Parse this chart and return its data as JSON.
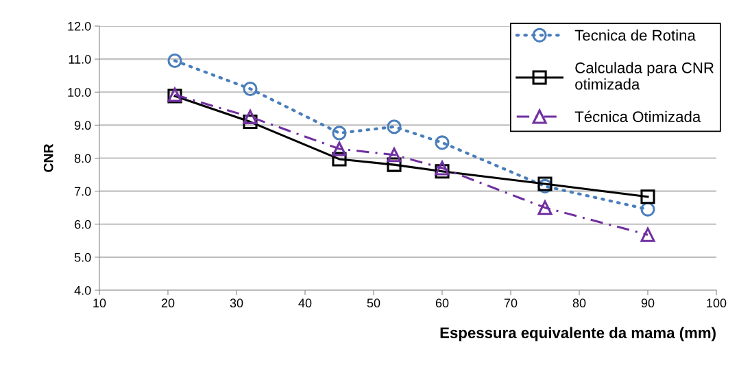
{
  "chart_data": {
    "type": "line",
    "xlabel": "Espessura equivalente da mama (mm)",
    "ylabel": "CNR",
    "x": [
      21,
      32,
      45,
      53,
      60,
      75,
      90
    ],
    "series": [
      {
        "name": "Tecnica de Rotina",
        "color": "#4a7ebb",
        "line_style": "dotted",
        "marker": "circle",
        "values": [
          10.95,
          10.1,
          8.76,
          8.95,
          8.47,
          7.15,
          6.45
        ]
      },
      {
        "name": "Calculada para CNR\notimizada",
        "color": "#000000",
        "line_style": "solid",
        "marker": "square",
        "values": [
          9.88,
          9.1,
          7.97,
          7.8,
          7.6,
          7.22,
          6.83
        ]
      },
      {
        "name": "Técnica Otimizada",
        "color": "#7030a0",
        "line_style": "dashdot",
        "marker": "triangle",
        "values": [
          9.92,
          9.25,
          8.28,
          8.1,
          7.7,
          6.5,
          5.68
        ]
      }
    ],
    "xlim": [
      10,
      100
    ],
    "xticks": [
      10,
      20,
      30,
      40,
      50,
      60,
      70,
      80,
      90,
      100
    ],
    "ylim": [
      4.0,
      12.0
    ],
    "yticks": [
      {
        "value": 4,
        "label": "4.0"
      },
      {
        "value": 5,
        "label": "5.0"
      },
      {
        "value": 6,
        "label": "6.0"
      },
      {
        "value": 7,
        "label": "7.0"
      },
      {
        "value": 8,
        "label": "8.0"
      },
      {
        "value": 9,
        "label": "9.0"
      },
      {
        "value": 10,
        "label": "10.0"
      },
      {
        "value": 11,
        "label": "11.0"
      },
      {
        "value": 12,
        "label": "12.0"
      }
    ],
    "grid": "y",
    "legend": "top right"
  }
}
